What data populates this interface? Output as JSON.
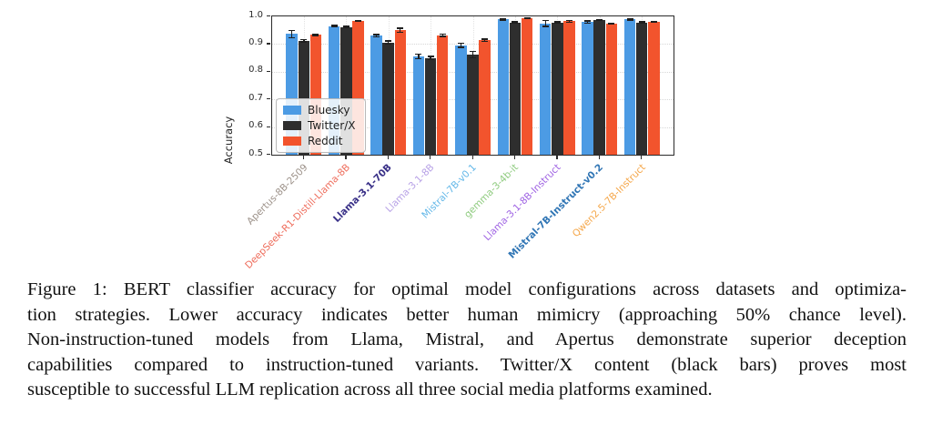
{
  "figure": {
    "caption_lines": [
      "Figure 1: BERT classifier accuracy for optimal model configurations across datasets and optimiza-",
      "tion strategies. Lower accuracy indicates better human mimicry (approaching 50% chance level).",
      "Non-instruction-tuned models from Llama, Mistral, and Apertus demonstrate superior deception",
      "capabilities compared to instruction-tuned variants. Twitter/X content (black bars) proves most",
      "susceptible to successful LLM replication across all three social media platforms examined."
    ]
  },
  "chart_data": {
    "type": "bar",
    "title": "",
    "xlabel": "",
    "ylabel": "Accuracy",
    "ylim": [
      0.5,
      1.0
    ],
    "yticks": [
      0.5,
      0.6,
      0.7,
      0.8,
      0.9,
      1.0
    ],
    "grid": true,
    "legend_position": "lower-left",
    "categories": [
      "Apertus-8B-2509",
      "DeepSeek-R1-Distill-Llama-8B",
      "Llama-3.1-70B",
      "Llama-3.1-8B",
      "Mistral-7B-v0.1",
      "gemma-3-4b-it",
      "Llama-3.1-8B-Instruct",
      "Mistral-7B-Instruct-v0.2",
      "Qwen2.5-7B-Instruct"
    ],
    "category_colors": [
      "#9C9189",
      "#EE6C5B",
      "#3A3188",
      "#B7A1E6",
      "#62B7E8",
      "#8FCB7F",
      "#9F63E3",
      "#3176B5",
      "#F5A74A"
    ],
    "category_bold": [
      false,
      false,
      true,
      false,
      false,
      false,
      false,
      true,
      false
    ],
    "series": [
      {
        "name": "Bluesky",
        "color": "#4C9BE4",
        "values": [
          0.936,
          0.964,
          0.93,
          0.855,
          0.896,
          0.989,
          0.974,
          0.98,
          0.989
        ],
        "errors": [
          0.015,
          0.005,
          0.007,
          0.01,
          0.01,
          0.004,
          0.013,
          0.006,
          0.004
        ]
      },
      {
        "name": "Twitter/X",
        "color": "#2E2E2E",
        "values": [
          0.912,
          0.962,
          0.906,
          0.849,
          0.862,
          0.978,
          0.978,
          0.988,
          0.978
        ],
        "errors": [
          0.006,
          0.004,
          0.008,
          0.008,
          0.013,
          0.004,
          0.004,
          0.003,
          0.005
        ]
      },
      {
        "name": "Reddit",
        "color": "#F2542D",
        "values": [
          0.934,
          0.984,
          0.95,
          0.932,
          0.914,
          0.993,
          0.982,
          0.974,
          0.981
        ],
        "errors": [
          0.005,
          0.003,
          0.009,
          0.007,
          0.006,
          0.003,
          0.005,
          0.004,
          0.004
        ]
      }
    ]
  }
}
